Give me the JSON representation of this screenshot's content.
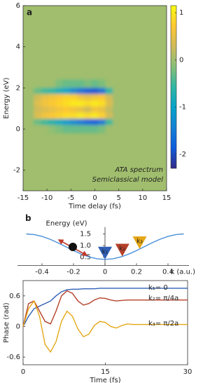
{
  "chart_data": [
    {
      "type": "heatmap",
      "label": "a",
      "xlabel": "Time delay (fs)",
      "ylabel": "Energy (eV)",
      "annotations": [
        "ATA spectrum",
        "Semiclassical model"
      ],
      "xlim": [
        -15,
        15
      ],
      "ylim": [
        -3,
        6
      ],
      "xticks": [
        -15,
        -10,
        -5,
        0,
        5,
        10,
        15
      ],
      "yticks": [
        -2,
        0,
        2,
        4,
        6
      ],
      "x": [
        -12,
        -10.5,
        -9,
        -7.5,
        -6,
        -4.5,
        -3,
        -1.5,
        0,
        1.5,
        3,
        4.5
      ],
      "y": [
        2.2,
        1.8,
        1.5,
        1.2,
        0.9,
        0.6,
        0.3,
        0
      ],
      "z": [
        [
          0,
          0,
          0,
          -0.2,
          -0.3,
          -0.3,
          -0.3,
          -0.2,
          -0.3,
          -0.2,
          0,
          0
        ],
        [
          -0.3,
          -0.5,
          -0.6,
          -0.8,
          -1.0,
          -1.3,
          -1.6,
          -1.8,
          -1.9,
          -1.6,
          -0.6,
          0
        ],
        [
          0.3,
          0.5,
          0.6,
          0.7,
          0.8,
          0.8,
          0.6,
          0.5,
          0.6,
          0.7,
          0.3,
          0
        ],
        [
          0.4,
          0.6,
          0.7,
          0.8,
          0.9,
          1.0,
          1.0,
          0.9,
          1.0,
          0.9,
          0.4,
          0
        ],
        [
          0.3,
          0.4,
          0.5,
          0.6,
          0.7,
          0.6,
          0.5,
          0.3,
          0.6,
          0.5,
          0.2,
          0
        ],
        [
          0.4,
          0.6,
          0.7,
          0.8,
          0.9,
          0.9,
          1.0,
          0.9,
          1.0,
          0.8,
          0.3,
          0
        ],
        [
          -0.3,
          -0.5,
          -0.7,
          -0.9,
          -1.1,
          -1.3,
          -1.5,
          -1.7,
          -1.8,
          -1.5,
          -0.5,
          0
        ],
        [
          0,
          0,
          -0.1,
          -0.2,
          -0.3,
          -0.3,
          -0.3,
          -0.3,
          -0.3,
          -0.2,
          0,
          0
        ]
      ],
      "fill_value": 0,
      "colorbar": {
        "lim": [
          -2.3,
          1.15
        ],
        "ticks": [
          1,
          0,
          -1,
          -2
        ]
      },
      "colormap": [
        "#352a87",
        "#0f5cdd",
        "#1481d6",
        "#06a4ca",
        "#2eb7a4",
        "#87bf77",
        "#d1bb59",
        "#fec832",
        "#f9fb0e"
      ]
    },
    {
      "type": "line",
      "label": "b",
      "xlabel": "k (a.u.)",
      "ylabel": "Energy (eV)",
      "xlim": [
        -0.5,
        0.5
      ],
      "ylim": [
        0.2,
        1.8
      ],
      "xticks": [
        -0.4,
        -0.2,
        0,
        0.2,
        0.4
      ],
      "yticks": [
        0.5,
        {
          "value": 1,
          "label": "1.0"
        },
        1.5
      ],
      "x": [
        -0.5,
        -0.45,
        -0.4,
        -0.35,
        -0.3,
        -0.25,
        -0.2,
        -0.15,
        -0.1,
        -0.05,
        0,
        0.05,
        0.1,
        0.15,
        0.2,
        0.25,
        0.3,
        0.35,
        0.4,
        0.45,
        0.5
      ],
      "series": [
        {
          "color": "#4a90d9",
          "values": [
            1.5,
            1.473,
            1.395,
            1.273,
            1.12,
            0.95,
            0.78,
            0.627,
            0.505,
            0.427,
            0.4,
            0.427,
            0.505,
            0.627,
            0.78,
            0.95,
            1.12,
            1.273,
            1.395,
            1.473,
            1.5
          ]
        }
      ],
      "markers": {
        "labels": [
          "k₁",
          "k₂",
          "k₃"
        ],
        "x": [
          0,
          0.11,
          0.22
        ],
        "values": [
          0.4,
          0.53,
          0.85
        ],
        "colors": [
          "#2f5fb5",
          "#b5412a",
          "#e6a817"
        ]
      }
    },
    {
      "type": "line",
      "xlabel": "Time (fs)",
      "ylabel": "Phase (rad)",
      "xlim": [
        0,
        30
      ],
      "ylim": [
        -0.75,
        0.9
      ],
      "xticks": [
        0,
        15,
        30
      ],
      "yticks": [
        -0.6,
        0,
        0.6
      ],
      "x": [
        0,
        1,
        2,
        3,
        4,
        5,
        6,
        7,
        8,
        9,
        10,
        11,
        12,
        13,
        14,
        15,
        16,
        17,
        18,
        19,
        20,
        21,
        22,
        23,
        24,
        25,
        26,
        27,
        28,
        29,
        30
      ],
      "series": [
        {
          "name": "k₁= 0",
          "color": "#2f5fb5",
          "values": [
            0,
            0.2,
            0.35,
            0.4,
            0.45,
            0.5,
            0.6,
            0.68,
            0.72,
            0.73,
            0.73,
            0.74,
            0.74,
            0.74,
            0.75,
            0.75,
            0.75,
            0.75,
            0.75,
            0.75,
            0.75,
            0.75,
            0.75,
            0.75,
            0.75,
            0.75,
            0.75,
            0.75,
            0.75,
            0.75,
            0.75
          ]
        },
        {
          "name": "k₂= π/4a",
          "color": "#b5412a",
          "values": [
            0,
            0.45,
            0.5,
            0.3,
            0.1,
            0.05,
            0.3,
            0.6,
            0.7,
            0.65,
            0.5,
            0.42,
            0.45,
            0.52,
            0.56,
            0.55,
            0.52,
            0.5,
            0.51,
            0.52,
            0.52,
            0.52,
            0.52,
            0.52,
            0.52,
            0.52,
            0.52,
            0.52,
            0.52,
            0.52,
            0.52
          ]
        },
        {
          "name": "k₃= π/2a",
          "color": "#e6a817",
          "values": [
            0,
            0.35,
            0.5,
            0.2,
            -0.35,
            -0.5,
            -0.3,
            0.1,
            0.3,
            0.2,
            -0.05,
            -0.2,
            -0.15,
            0.02,
            0.1,
            0.08,
            0,
            -0.03,
            0.02,
            0.05,
            0.04,
            0.04,
            0.04,
            0.04,
            0.04,
            0.04,
            0.04,
            0.04,
            0.04,
            0.04,
            0.04
          ]
        }
      ]
    }
  ]
}
